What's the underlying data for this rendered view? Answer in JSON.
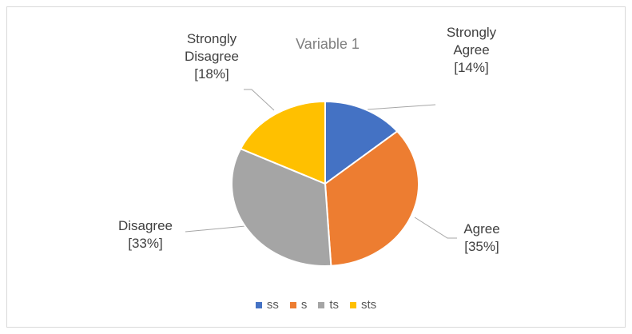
{
  "chart_data": {
    "type": "pie",
    "title": "Variable 1",
    "categories": [
      "ss",
      "s",
      "ts",
      "sts"
    ],
    "labels": [
      "Strongly Agree",
      "Agree",
      "Disagree",
      "Strongly Disagree"
    ],
    "values": [
      14,
      35,
      33,
      18
    ],
    "value_labels": [
      "[14%]",
      "[35%]",
      "[33%]",
      "[18%]"
    ],
    "colors": [
      "#4472c4",
      "#ed7d31",
      "#a5a5a5",
      "#ffc000"
    ],
    "legend": "bottom"
  }
}
